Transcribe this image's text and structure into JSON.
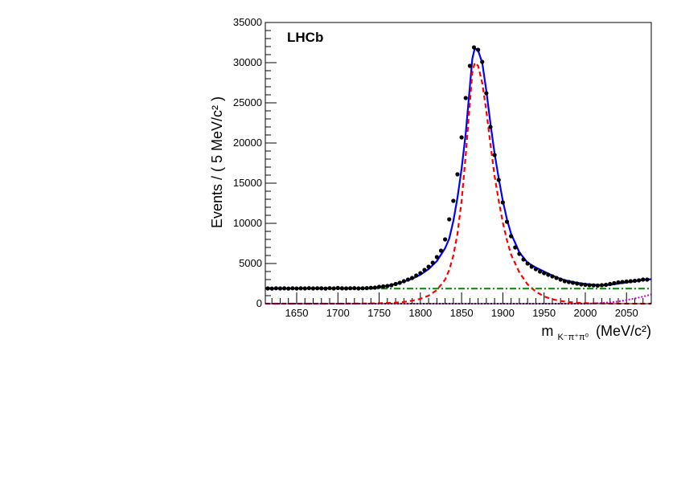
{
  "chart_data": {
    "type": "line",
    "title": "",
    "experiment_label": "LHCb",
    "xlabel": {
      "main": "m",
      "subscript": "K⁻π⁺π⁰",
      "units": "(MeV/c²)"
    },
    "ylabel": "Events / ( 5 MeV/c² )",
    "xlim": [
      1612,
      2080
    ],
    "ylim": [
      0,
      35000
    ],
    "xticks": [
      1650,
      1700,
      1750,
      1800,
      1850,
      1900,
      1950,
      2000,
      2050
    ],
    "yticks": [
      0,
      5000,
      10000,
      15000,
      20000,
      25000,
      30000,
      35000
    ],
    "grid": false,
    "colors": {
      "data_points": "#000000",
      "total_fit": "#0000ff",
      "signal": "#ff0000",
      "combinatorial_background": "#008800",
      "peaking_background": "#cc00cc"
    },
    "series": [
      {
        "kind": "points",
        "x": [
          1615,
          1620,
          1625,
          1630,
          1635,
          1640,
          1645,
          1650,
          1655,
          1660,
          1665,
          1670,
          1675,
          1680,
          1685,
          1690,
          1695,
          1700,
          1705,
          1710,
          1715,
          1720,
          1725,
          1730,
          1735,
          1740,
          1745,
          1750,
          1755,
          1760,
          1765,
          1770,
          1775,
          1780,
          1785,
          1790,
          1795,
          1800,
          1805,
          1810,
          1815,
          1820,
          1825,
          1830,
          1835,
          1840,
          1845,
          1850,
          1855,
          1860,
          1865,
          1870,
          1875,
          1880,
          1885,
          1890,
          1895,
          1900,
          1905,
          1910,
          1915,
          1920,
          1925,
          1930,
          1935,
          1940,
          1945,
          1950,
          1955,
          1960,
          1965,
          1970,
          1975,
          1980,
          1985,
          1990,
          1995,
          2000,
          2005,
          2010,
          2015,
          2020,
          2025,
          2030,
          2035,
          2040,
          2045,
          2050,
          2055,
          2060,
          2065,
          2070,
          2075
        ],
        "values": [
          1900,
          1880,
          1920,
          1900,
          1910,
          1880,
          1920,
          1890,
          1910,
          1900,
          1930,
          1900,
          1920,
          1910,
          1880,
          1930,
          1900,
          1950,
          1910,
          1900,
          1920,
          1930,
          1900,
          1920,
          1940,
          1980,
          2000,
          2100,
          2150,
          2200,
          2300,
          2450,
          2600,
          2800,
          3000,
          3200,
          3500,
          3800,
          4200,
          4600,
          5100,
          5800,
          6600,
          8000,
          10500,
          12800,
          16100,
          20700,
          25600,
          29600,
          31900,
          31600,
          30100,
          26200,
          22000,
          18500,
          15400,
          12600,
          10200,
          8400,
          7000,
          6200,
          5500,
          5000,
          4600,
          4300,
          4000,
          3800,
          3600,
          3400,
          3200,
          3000,
          2800,
          2700,
          2600,
          2500,
          2400,
          2350,
          2300,
          2280,
          2250,
          2300,
          2350,
          2450,
          2550,
          2650,
          2700,
          2750,
          2800,
          2850,
          2900,
          3000,
          3000
        ]
      },
      {
        "kind": "curve",
        "x": [
          1612,
          1620,
          1640,
          1660,
          1680,
          1700,
          1720,
          1740,
          1750,
          1760,
          1770,
          1780,
          1790,
          1800,
          1810,
          1820,
          1830,
          1835,
          1840,
          1845,
          1850,
          1855,
          1860,
          1863,
          1866,
          1870,
          1875,
          1880,
          1885,
          1890,
          1895,
          1900,
          1905,
          1910,
          1920,
          1930,
          1940,
          1950,
          1960,
          1970,
          1980,
          1990,
          2000,
          2010,
          2020,
          2030,
          2040,
          2050,
          2060,
          2070,
          2080
        ],
        "values": [
          1880,
          1890,
          1900,
          1905,
          1910,
          1910,
          1915,
          1940,
          2050,
          2200,
          2450,
          2750,
          3100,
          3600,
          4300,
          5300,
          6900,
          8100,
          10300,
          13200,
          16800,
          21200,
          27000,
          30500,
          31800,
          31500,
          30000,
          26500,
          22400,
          18700,
          15600,
          12800,
          10500,
          8700,
          6400,
          5100,
          4500,
          4000,
          3500,
          3100,
          2800,
          2600,
          2450,
          2350,
          2300,
          2350,
          2500,
          2650,
          2800,
          2950,
          3050
        ]
      },
      {
        "kind": "curve",
        "x": [
          1612,
          1650,
          1700,
          1730,
          1750,
          1760,
          1770,
          1780,
          1790,
          1800,
          1810,
          1820,
          1830,
          1835,
          1840,
          1845,
          1850,
          1855,
          1860,
          1863,
          1866,
          1870,
          1875,
          1880,
          1885,
          1890,
          1895,
          1900,
          1905,
          1910,
          1920,
          1930,
          1940,
          1950,
          1960,
          1970,
          1980,
          1990,
          2000,
          2010,
          2030,
          2050,
          2080
        ],
        "values": [
          0,
          0,
          5,
          20,
          50,
          80,
          130,
          220,
          380,
          600,
          1000,
          1700,
          3000,
          4200,
          6000,
          8700,
          12800,
          18500,
          25000,
          28800,
          30000,
          29600,
          27500,
          24000,
          19800,
          15900,
          12800,
          10100,
          7900,
          6100,
          3900,
          2400,
          1500,
          900,
          550,
          330,
          200,
          120,
          70,
          40,
          15,
          5,
          0
        ]
      },
      {
        "kind": "curve",
        "x": [
          1612,
          2080
        ],
        "values": [
          1880,
          1880
        ]
      },
      {
        "kind": "curve",
        "x": [
          1612,
          2000,
          2010,
          2020,
          2030,
          2040,
          2050,
          2060,
          2070,
          2080
        ],
        "values": [
          0,
          0,
          30,
          80,
          160,
          280,
          450,
          650,
          880,
          1150
        ]
      }
    ]
  }
}
